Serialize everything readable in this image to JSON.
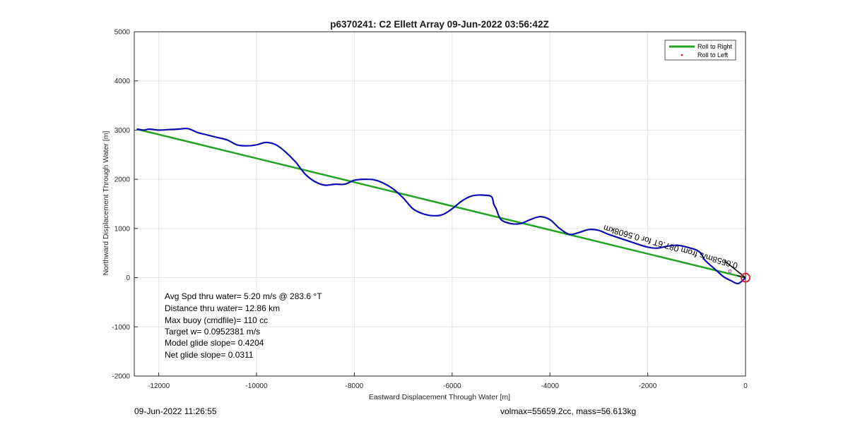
{
  "chart_data": {
    "type": "line",
    "title": "p6370241: C2 Ellett Array 09-Jun-2022 03:56:42Z",
    "xlabel": "Eastward Displacement Through Water [m]",
    "ylabel": "Northward Displacement Through Water [m]",
    "xlim": [
      -12500,
      0
    ],
    "ylim": [
      -2000,
      5000
    ],
    "xticks": [
      -12000,
      -10000,
      -8000,
      -6000,
      -4000,
      -2000,
      0
    ],
    "yticks": [
      -2000,
      -1000,
      0,
      1000,
      2000,
      3000,
      4000,
      5000
    ],
    "grid": true,
    "legend_position": "top-right",
    "legend": [
      "Roll to Right",
      "Roll to Left"
    ],
    "series": [
      {
        "name": "Roll to Right",
        "color": "#22a322",
        "x": [
          0,
          -12450
        ],
        "y": [
          0,
          3020
        ]
      },
      {
        "color": "#0d0db5",
        "x": [
          0,
          -150,
          -300,
          -450,
          -600,
          -750,
          -850,
          -900,
          -1000,
          -1200,
          -1400,
          -1600,
          -1800,
          -2000,
          -2200,
          -2500,
          -2800,
          -3000,
          -3200,
          -3400,
          -3600,
          -3800,
          -4000,
          -4200,
          -4400,
          -4600,
          -4800,
          -5000,
          -5100,
          -5150,
          -5200,
          -5400,
          -5600,
          -5800,
          -6000,
          -6200,
          -6400,
          -6600,
          -6800,
          -7000,
          -7200,
          -7400,
          -7600,
          -7800,
          -8000,
          -8200,
          -8400,
          -8600,
          -8800,
          -9000,
          -9200,
          -9400,
          -9600,
          -9800,
          -10000,
          -10200,
          -10400,
          -10600,
          -10800,
          -11000,
          -11200,
          -11400,
          -11600,
          -11800,
          -12000,
          -12200,
          -12300,
          -12450
        ],
        "y": [
          0,
          -120,
          -60,
          20,
          150,
          280,
          380,
          480,
          560,
          620,
          660,
          640,
          600,
          620,
          680,
          780,
          880,
          960,
          980,
          920,
          880,
          1000,
          1180,
          1240,
          1180,
          1100,
          1100,
          1180,
          1400,
          1500,
          1650,
          1680,
          1660,
          1560,
          1400,
          1280,
          1260,
          1300,
          1400,
          1620,
          1800,
          1920,
          1990,
          2000,
          1980,
          1900,
          1900,
          1880,
          1950,
          2100,
          2350,
          2550,
          2700,
          2750,
          2700,
          2680,
          2700,
          2800,
          2850,
          2900,
          2950,
          3030,
          3020,
          3010,
          3000,
          3020,
          3000,
          3020
        ]
      }
    ],
    "annotations": [
      "Avg Spd thru water=  5.20 m/s @ 283.6 °T",
      "Distance thru water= 12.86 km",
      "Max buoy (cmdfile)= 110 cc",
      "Target w= 0.0952381 m/s",
      "Model glide slope= 0.4204",
      "Net glide slope= 0.0311"
    ],
    "current_label": "0.0558m/s from 087.6T for 0.5608km"
  },
  "footer": {
    "date": "09-Jun-2022 11:26:55",
    "stats": "volmax=55659.2cc, mass=56.613kg"
  },
  "colors": {
    "roll_right": "#22a322",
    "roll_left": "#e0202a",
    "track": "#0d0db5",
    "marker": "#d81f26"
  }
}
